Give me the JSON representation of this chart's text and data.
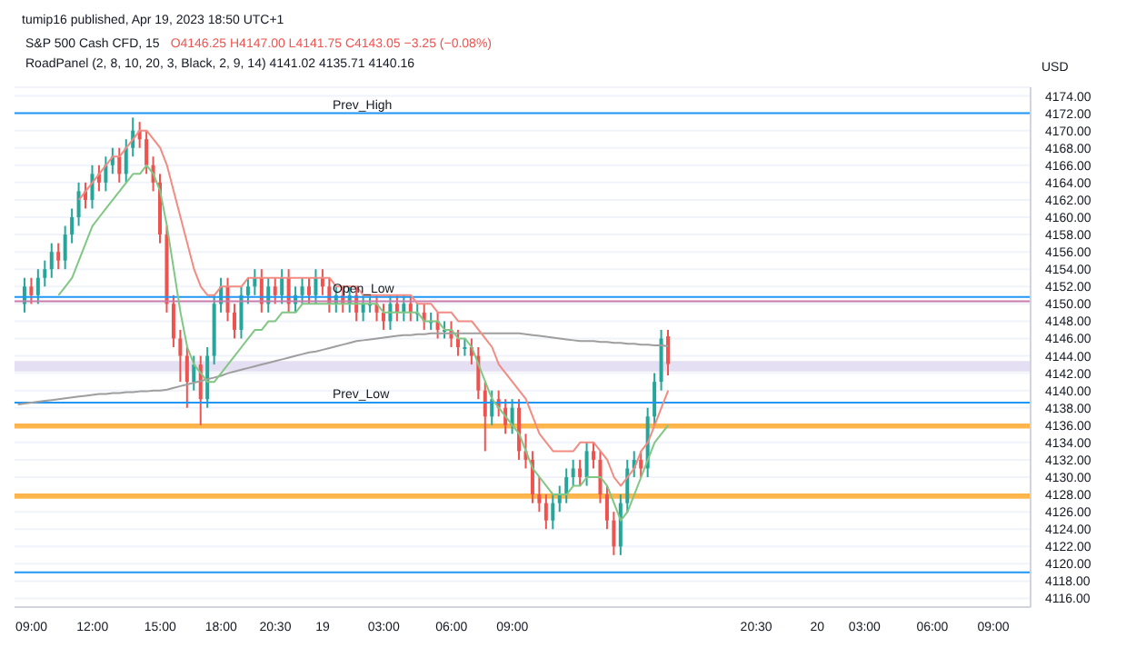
{
  "chart_data": {
    "type": "candlestick",
    "title": "S&P 500 Cash CFD, 15",
    "subtitle": "RoadPanel (2, 8, 10, 20, 3, Black, 2, 9, 14)  4141.02  4135.71  4140.16",
    "annotations": [
      "tumip16 published, Apr 19, 2023 18:50 UTC+1",
      "O4146.25 H4147.00 L4141.75 C4143.05 −3.25 (−0.08%)"
    ],
    "ylabel": "USD",
    "categories": [
      null,
      null,
      "09:00",
      null,
      null,
      null,
      null,
      null,
      null,
      null,
      null,
      "12:00",
      null,
      null,
      null,
      null,
      null,
      null,
      null,
      null,
      null,
      "15:00",
      null,
      null,
      null,
      null,
      null,
      null,
      null,
      null,
      "18:00",
      null,
      null,
      null,
      null,
      null,
      null,
      null,
      "20:30",
      null,
      null,
      null,
      null,
      null,
      null,
      "19",
      null,
      null,
      null,
      null,
      null,
      null,
      null,
      null,
      "03:00",
      null,
      null,
      null,
      null,
      null,
      null,
      null,
      null,
      null,
      "06:00",
      null,
      null,
      null,
      null,
      null,
      null,
      null,
      null,
      "09:00",
      null,
      null,
      null,
      null,
      null,
      null,
      null,
      null,
      null,
      null,
      null,
      null,
      null,
      null,
      null,
      null,
      null,
      null,
      null,
      null,
      null,
      null,
      null,
      null,
      null,
      null,
      null,
      null,
      null,
      null,
      null,
      null,
      null,
      null,
      null,
      "20:30",
      null,
      null,
      null,
      null,
      null,
      null,
      null,
      null,
      "20",
      null,
      null,
      null,
      null,
      null,
      null,
      "03:00",
      null,
      null,
      null,
      null,
      null,
      null,
      null,
      null,
      null,
      "06:00",
      null,
      null,
      null,
      null,
      null,
      null,
      null,
      null,
      "09:00",
      null,
      null,
      null,
      null,
      null
    ],
    "ohlc": [
      null,
      [
        4150,
        4153,
        4149,
        4152
      ],
      [
        4152,
        4153,
        4150,
        4151
      ],
      [
        4151,
        4154,
        4150,
        4153
      ],
      [
        4153,
        4155,
        4152,
        4154
      ],
      [
        4154,
        4157,
        4153,
        4156
      ],
      [
        4156,
        4157,
        4154,
        4155
      ],
      [
        4155,
        4159,
        4154,
        4158
      ],
      [
        4158,
        4161,
        4157,
        4160
      ],
      [
        4160,
        4164,
        4159,
        4163
      ],
      [
        4163,
        4164,
        4161,
        4162
      ],
      [
        4162,
        4166,
        4161,
        4165
      ],
      [
        4165,
        4166,
        4163,
        4164
      ],
      [
        4164,
        4167,
        4163,
        4166
      ],
      [
        4166,
        4168,
        4165,
        4167
      ],
      [
        4167,
        4168,
        4164,
        4165
      ],
      [
        4165,
        4169,
        4164,
        4168
      ],
      [
        4168,
        4171.5,
        4167,
        4170
      ],
      [
        4170,
        4171,
        4168,
        4169
      ],
      [
        4169,
        4170,
        4165,
        4166
      ],
      [
        4166,
        4167,
        4163,
        4164
      ],
      [
        4164,
        4165,
        4157,
        4158
      ],
      [
        4158,
        4159,
        4149,
        4150
      ],
      [
        4150,
        4151,
        4145,
        4146
      ],
      [
        4146,
        4147,
        4141,
        4144
      ],
      [
        4144,
        4145,
        4138,
        4141
      ],
      [
        4141,
        4144,
        4140,
        4143
      ],
      [
        4143,
        4144,
        4136,
        4139
      ],
      [
        4139,
        4145,
        4138,
        4144
      ],
      [
        4144,
        4151,
        4143,
        4150
      ],
      [
        4150,
        4153,
        4149,
        4152
      ],
      [
        4152,
        4153,
        4148,
        4149
      ],
      [
        4149,
        4150,
        4146,
        4147
      ],
      [
        4147,
        4152,
        4146,
        4151
      ],
      [
        4151,
        4153,
        4150,
        4152
      ],
      [
        4152,
        4154,
        4151,
        4153
      ],
      [
        4153,
        4154,
        4149,
        4150
      ],
      [
        4150,
        4153,
        4149,
        4152
      ],
      [
        4152,
        4153,
        4150,
        4151
      ],
      [
        4151,
        4154,
        4150,
        4153
      ],
      [
        4153,
        4154,
        4149,
        4150
      ],
      [
        4150,
        4152,
        4149,
        4151
      ],
      [
        4151,
        4153,
        4150,
        4152
      ],
      [
        4152,
        4153,
        4150,
        4151
      ],
      [
        4151,
        4154,
        4150,
        4153
      ],
      [
        4153,
        4154,
        4151,
        4152
      ],
      [
        4152,
        4153,
        4149,
        4150
      ],
      [
        4150,
        4152,
        4149,
        4151
      ],
      [
        4151,
        4152,
        4149,
        4150
      ],
      [
        4150,
        4152,
        4149,
        4151
      ],
      [
        4151,
        4152,
        4148,
        4149
      ],
      [
        4149,
        4151,
        4148,
        4150
      ],
      [
        4150,
        4151,
        4149,
        4150
      ],
      [
        4150,
        4151,
        4148,
        4149
      ],
      [
        4149,
        4150,
        4147,
        4148
      ],
      [
        4148,
        4151,
        4147,
        4150
      ],
      [
        4150,
        4151,
        4148,
        4149
      ],
      [
        4149,
        4151,
        4148,
        4150
      ],
      [
        4150,
        4151,
        4148,
        4149
      ],
      [
        4149,
        4150,
        4148,
        4149
      ],
      [
        4149,
        4150,
        4147,
        4148
      ],
      [
        4148,
        4149,
        4147,
        4148
      ],
      [
        4148,
        4149,
        4146,
        4147
      ],
      [
        4147,
        4148,
        4146,
        4147
      ],
      [
        4147,
        4148,
        4145,
        4146
      ],
      [
        4146,
        4147,
        4144,
        4145
      ],
      [
        4145,
        4146,
        4144,
        4145
      ],
      [
        4145,
        4146,
        4143,
        4144
      ],
      [
        4144,
        4145,
        4139,
        4140
      ],
      [
        4140,
        4141,
        4133,
        4137
      ],
      [
        4137,
        4140,
        4136,
        4139
      ],
      [
        4139,
        4140,
        4137,
        4138
      ],
      [
        4138,
        4139,
        4135,
        4136
      ],
      [
        4136,
        4139,
        4135,
        4138
      ],
      [
        4138,
        4139,
        4132,
        4133
      ],
      [
        4133,
        4135,
        4131,
        4132
      ],
      [
        4132,
        4133,
        4127,
        4128
      ],
      [
        4128,
        4130,
        4126,
        4127
      ],
      [
        4127,
        4128,
        4124,
        4125
      ],
      [
        4125,
        4128,
        4124,
        4127
      ],
      [
        4127,
        4129,
        4126,
        4128
      ],
      [
        4128,
        4131,
        4127,
        4130
      ],
      [
        4130,
        4132,
        4129,
        4131
      ],
      [
        4131,
        4132,
        4129,
        4130
      ],
      [
        4130,
        4134,
        4129,
        4133
      ],
      [
        4133,
        4134,
        4131,
        4132
      ],
      [
        4132,
        4133,
        4127,
        4128
      ],
      [
        4128,
        4129,
        4124,
        4125
      ],
      [
        4125,
        4126,
        4121,
        4122
      ],
      [
        4122,
        4128,
        4121,
        4127
      ],
      [
        4127,
        4132,
        4126,
        4131
      ],
      [
        4131,
        4133,
        4130,
        4132
      ],
      [
        4132,
        4133,
        4130,
        4131
      ],
      [
        4131,
        4138,
        4130,
        4137
      ],
      [
        4137,
        4142,
        4136,
        4141
      ],
      [
        4141,
        4147,
        4140,
        4146
      ],
      [
        4146.25,
        4147,
        4141.75,
        4143.05
      ],
      null,
      null,
      null,
      null,
      null,
      null,
      null,
      null,
      null,
      null,
      null,
      null,
      null,
      null,
      null,
      null,
      null,
      null,
      null,
      null,
      null,
      null,
      null,
      null,
      null,
      null,
      null,
      null,
      null,
      null,
      null,
      null,
      null,
      null,
      null,
      null,
      null,
      null,
      null,
      null,
      null,
      null,
      null,
      null,
      null,
      null,
      null,
      null,
      null,
      null,
      null,
      null,
      null
    ],
    "series": [
      {
        "type": "line",
        "color": "#9e9e9e",
        "values": [
          4138.4,
          4138.5,
          4138.6,
          4138.7,
          4138.8,
          4138.9,
          4139,
          4139.1,
          4139.2,
          4139.3,
          4139.4,
          4139.5,
          4139.6,
          4139.6,
          4139.7,
          4139.7,
          4139.8,
          4139.8,
          4139.9,
          4139.9,
          4140,
          4140,
          4140.1,
          4140.3,
          4140.5,
          4140.7,
          4140.9,
          4141.1,
          4141.3,
          4141.5,
          4141.7,
          4142,
          4142.2,
          4142.4,
          4142.6,
          4142.8,
          4143,
          4143.2,
          4143.4,
          4143.6,
          4143.8,
          4144,
          4144.2,
          4144.4,
          4144.5,
          4144.7,
          4144.9,
          4145.1,
          4145.3,
          4145.5,
          4145.7,
          4145.8,
          4145.9,
          4146,
          4146.1,
          4146.2,
          4146.3,
          4146.4,
          4146.4,
          4146.5,
          4146.5,
          4146.6,
          4146.6,
          4146.6,
          4146.6,
          4146.6,
          4146.6,
          4146.6,
          4146.6,
          4146.6,
          4146.6,
          4146.6,
          4146.6,
          4146.6,
          4146.6,
          4146.5,
          4146.4,
          4146.3,
          4146.2,
          4146.1,
          4146,
          4145.9,
          4145.8,
          4145.7,
          4145.7,
          4145.7,
          4145.6,
          4145.6,
          4145.5,
          4145.5,
          4145.4,
          4145.4,
          4145.3,
          4145.3,
          4145.2,
          4145.2,
          4145.1,
          null,
          null,
          null,
          null,
          null,
          null,
          null,
          null,
          null,
          null,
          null,
          null,
          null,
          null,
          null,
          null,
          null,
          null,
          null,
          null,
          null,
          null,
          null,
          null,
          null,
          null,
          null,
          null,
          null,
          null,
          null,
          null,
          null,
          null,
          null,
          null,
          null,
          null,
          null,
          null,
          null,
          null,
          null,
          null,
          null,
          null,
          null,
          null,
          null,
          null,
          null,
          null,
          null
        ]
      },
      {
        "type": "line",
        "color": "#f28b82",
        "values": [
          null,
          null,
          null,
          null,
          null,
          null,
          null,
          null,
          null,
          4162,
          4163,
          4164,
          4165,
          4166,
          4167,
          4167,
          4168,
          4169,
          4170,
          4170,
          4169,
          4168,
          4166,
          4163,
          4160,
          4157,
          4154,
          4152,
          4151,
          4151,
          4152,
          4152,
          4152,
          4152,
          4153,
          4153,
          4153,
          4153,
          4153,
          4153,
          4153,
          4153,
          4153,
          4153,
          4153,
          4153,
          4153,
          4152,
          4152,
          4152,
          4152,
          4151,
          4151,
          4151,
          4151,
          4151,
          4151,
          4151,
          4151,
          4150,
          4150,
          4150,
          4149,
          4149,
          4149,
          4148,
          4148,
          4148,
          4147,
          4146,
          4145,
          4143,
          4142,
          4141,
          4140,
          4139,
          4137,
          4135,
          4134,
          4133,
          4133,
          4133,
          4133,
          4134,
          4134,
          4134,
          4133,
          4132,
          4130,
          4129,
          4130,
          4131,
          4133,
          4134,
          4136,
          4138,
          4140,
          null,
          null,
          null,
          null,
          null,
          null,
          null,
          null,
          null,
          null,
          null,
          null,
          null,
          null,
          null,
          null,
          null,
          null,
          null,
          null,
          null,
          null,
          null,
          null,
          null,
          null,
          null,
          null,
          null,
          null,
          null,
          null,
          null,
          null,
          null,
          null,
          null,
          null,
          null,
          null,
          null,
          null,
          null,
          null,
          null,
          null,
          null,
          null,
          null,
          null,
          null,
          null,
          null
        ]
      },
      {
        "type": "line",
        "color": "#81c784",
        "values": [
          null,
          null,
          null,
          null,
          null,
          null,
          4151,
          4152,
          4153,
          4155,
          4157,
          4159,
          4160,
          4161,
          4162,
          4163,
          4164,
          4165,
          4165,
          4166,
          4165,
          4163,
          4159,
          4154,
          4149,
          4145,
          4143,
          4142,
          4141,
          4141,
          4142,
          4143,
          4144,
          4145,
          4146,
          4147,
          4147,
          4148,
          4148,
          4149,
          4149,
          4149,
          4150,
          4150,
          4150,
          4150,
          4150,
          4150,
          4150,
          4150,
          4150,
          4150,
          4150,
          4150,
          4149,
          4149,
          4149,
          4149,
          4149,
          4149,
          4148,
          4148,
          4148,
          4147,
          4147,
          4146,
          4146,
          4145,
          4143,
          4141,
          4139,
          4138,
          4137,
          4136,
          4135,
          4133,
          4131,
          4130,
          4129,
          4128,
          4128,
          4128,
          4129,
          4129,
          4130,
          4130,
          4130,
          4129,
          4127,
          4125,
          4126,
          4128,
          4130,
          4132,
          4134,
          4135,
          4136,
          null,
          null,
          null,
          null,
          null,
          null,
          null,
          null,
          null,
          null,
          null,
          null,
          null,
          null,
          null,
          null,
          null,
          null,
          null,
          null,
          null,
          null,
          null,
          null,
          null,
          null,
          null,
          null,
          null,
          null,
          null,
          null,
          null,
          null,
          null,
          null,
          null,
          null,
          null,
          null,
          null,
          null,
          null,
          null,
          null,
          null,
          null,
          null,
          null,
          null,
          null,
          null,
          null
        ]
      }
    ],
    "ylim": [
      4115,
      4175
    ],
    "yticks": [
      {
        "value": 4116,
        "label": "4116.00"
      },
      {
        "value": 4118,
        "label": "4118.00"
      },
      {
        "value": 4120,
        "label": "4120.00"
      },
      {
        "value": 4122,
        "label": "4122.00"
      },
      {
        "value": 4124,
        "label": "4124.00"
      },
      {
        "value": 4126,
        "label": "4126.00"
      },
      {
        "value": 4128,
        "label": "4128.00"
      },
      {
        "value": 4130,
        "label": "4130.00"
      },
      {
        "value": 4132,
        "label": "4132.00"
      },
      {
        "value": 4134,
        "label": "4134.00"
      },
      {
        "value": 4136,
        "label": "4136.00"
      },
      {
        "value": 4138,
        "label": "4138.00"
      },
      {
        "value": 4140,
        "label": "4140.00"
      },
      {
        "value": 4142,
        "label": "4142.00"
      },
      {
        "value": 4144,
        "label": "4144.00"
      },
      {
        "value": 4146,
        "label": "4146.00"
      },
      {
        "value": 4148,
        "label": "4148.00"
      },
      {
        "value": 4150,
        "label": "4150.00"
      },
      {
        "value": 4152,
        "label": "4152.00"
      },
      {
        "value": 4154,
        "label": "4154.00"
      },
      {
        "value": 4156,
        "label": "4156.00"
      },
      {
        "value": 4158,
        "label": "4158.00"
      },
      {
        "value": 4160,
        "label": "4160.00"
      },
      {
        "value": 4162,
        "label": "4162.00"
      },
      {
        "value": 4164,
        "label": "4164.00"
      },
      {
        "value": 4166,
        "label": "4166.00"
      },
      {
        "value": 4168,
        "label": "4168.00"
      },
      {
        "value": 4170,
        "label": "4170.00"
      },
      {
        "value": 4172,
        "label": "4172.00"
      },
      {
        "value": 4174,
        "label": "4174.00"
      }
    ],
    "ref_lines": [
      {
        "axis": "y",
        "value": 4172,
        "label": "Prev_High",
        "color": "#2196f3"
      },
      {
        "axis": "y",
        "value": 4150.8,
        "label": "Open_Low",
        "color": "#2196f3"
      },
      {
        "axis": "y",
        "value": 4150.3,
        "label": null,
        "color": "#c77dab"
      },
      {
        "axis": "y",
        "value": 4138.6,
        "label": "Prev_Low",
        "color": "#2196f3"
      },
      {
        "axis": "y",
        "value": 4119,
        "label": null,
        "color": "#2196f3"
      }
    ],
    "bands": [
      {
        "axis": "y",
        "from": 4142.2,
        "to": 4143.4,
        "label": null,
        "color": "#d9d2ec"
      },
      {
        "axis": "y",
        "from": 4135.6,
        "to": 4136.2,
        "label": null,
        "color": "#ff9800"
      },
      {
        "axis": "y",
        "from": 4127.5,
        "to": 4128.1,
        "label": null,
        "color": "#ff9800"
      }
    ],
    "grid": "y"
  }
}
